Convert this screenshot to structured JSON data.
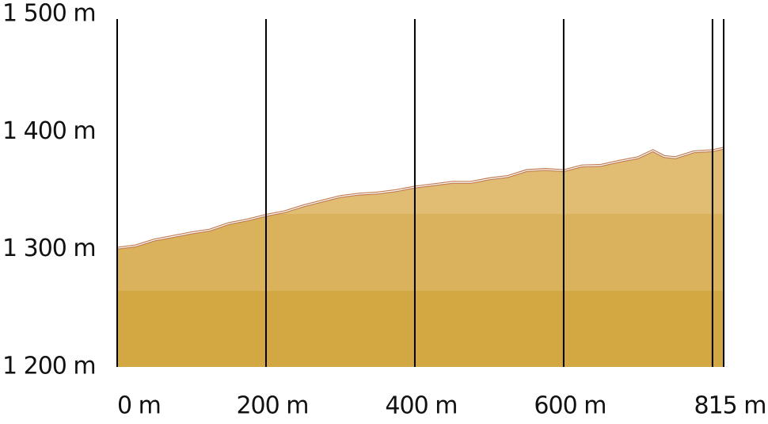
{
  "chart_data": {
    "type": "area",
    "x": [
      0,
      25,
      50,
      75,
      100,
      125,
      150,
      175,
      200,
      225,
      250,
      275,
      300,
      325,
      350,
      375,
      400,
      425,
      450,
      475,
      500,
      525,
      550,
      575,
      600,
      625,
      650,
      675,
      700,
      720,
      735,
      750,
      775,
      800,
      815
    ],
    "values": [
      1301,
      1303,
      1308,
      1311,
      1314,
      1316.5,
      1322,
      1325,
      1329,
      1332,
      1337,
      1341,
      1345,
      1347,
      1348,
      1350,
      1353,
      1355,
      1357,
      1357,
      1360,
      1362,
      1367,
      1368,
      1367,
      1371,
      1371.5,
      1375,
      1378,
      1384,
      1379,
      1378,
      1383,
      1384,
      1386
    ],
    "color": "#d9b25b",
    "line_color": "#c07a50",
    "xlim": [
      0,
      815
    ],
    "xticks": [
      {
        "value": 0,
        "label": "0 m"
      },
      {
        "value": 200,
        "label": "200 m"
      },
      {
        "value": 400,
        "label": "400 m"
      },
      {
        "value": 600,
        "label": "600 m"
      },
      {
        "value": 800,
        "label": null
      },
      {
        "value": 815,
        "label": "815 m"
      }
    ],
    "ylim": [
      1200,
      1500
    ],
    "yticks": [
      {
        "value": 1200,
        "label": "1 200 m"
      },
      {
        "value": 1300,
        "label": "1 300 m"
      },
      {
        "value": 1400,
        "label": "1 400 m"
      },
      {
        "value": 1500,
        "label": "1 500 m"
      }
    ],
    "grid": true
  }
}
